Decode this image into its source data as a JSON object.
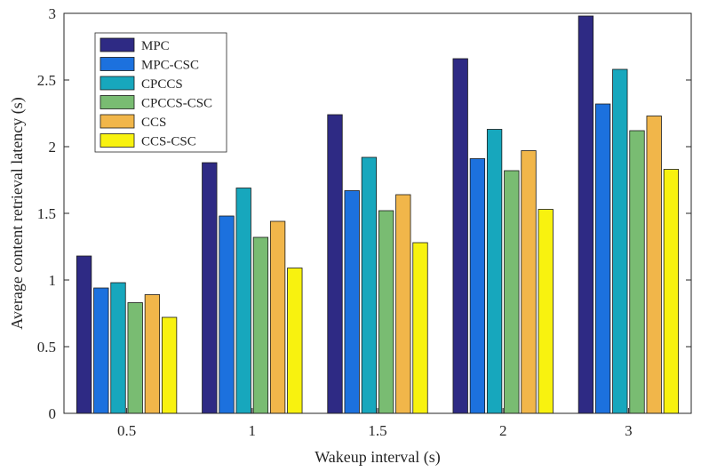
{
  "chart_data": {
    "type": "bar",
    "title": "",
    "xlabel": "Wakeup interval (s)",
    "ylabel": "Average content retrieval latency (s)",
    "categories": [
      "0.5",
      "1",
      "1.5",
      "2",
      "3"
    ],
    "ylim": [
      0,
      3
    ],
    "yticks": [
      "0",
      "0.5",
      "1",
      "1.5",
      "2",
      "2.5",
      "3"
    ],
    "grid": false,
    "legend_position": "top-left",
    "series": [
      {
        "name": "MPC",
        "color": "#2e2a84",
        "values": [
          1.18,
          1.88,
          2.24,
          2.66,
          2.98
        ]
      },
      {
        "name": "MPC-CSC",
        "color": "#1c71de",
        "values": [
          0.94,
          1.48,
          1.67,
          1.91,
          2.32
        ]
      },
      {
        "name": "CPCCS",
        "color": "#17a7bd",
        "values": [
          0.98,
          1.69,
          1.92,
          2.13,
          2.58
        ]
      },
      {
        "name": "CPCCS-CSC",
        "color": "#79bc72",
        "values": [
          0.83,
          1.32,
          1.52,
          1.82,
          2.12
        ]
      },
      {
        "name": "CCS",
        "color": "#f1b64a",
        "values": [
          0.89,
          1.44,
          1.64,
          1.97,
          2.23
        ]
      },
      {
        "name": "CCS-CSC",
        "color": "#f8f20f",
        "values": [
          0.72,
          1.09,
          1.28,
          1.53,
          1.83
        ]
      }
    ]
  }
}
